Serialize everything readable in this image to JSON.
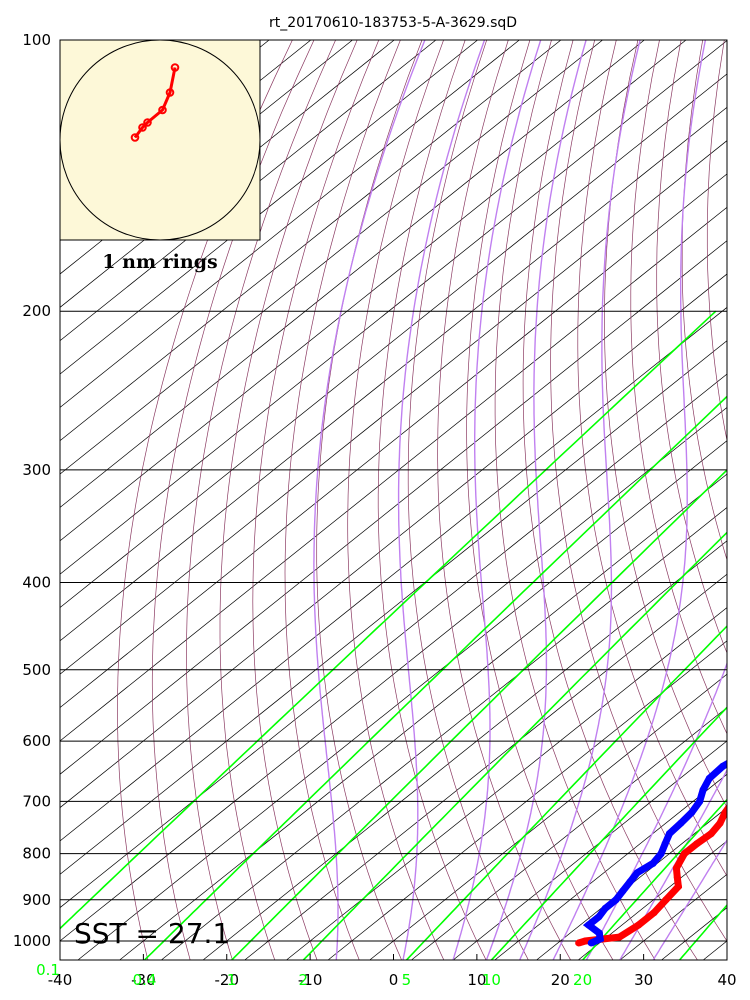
{
  "chart_data": {
    "type": "skew-t",
    "title": "rt_20170610-183753-5-A-3629.sqD",
    "y_axis": {
      "scale": "log",
      "ylim": [
        1050,
        100
      ],
      "ticks": [
        100,
        200,
        300,
        400,
        500,
        600,
        700,
        800,
        900,
        1000
      ]
    },
    "x_axis": {
      "xlim": [
        -40,
        40
      ],
      "ticks": [
        -40,
        -30,
        -20,
        -10,
        0,
        10,
        20,
        30,
        40
      ]
    },
    "mixing_ratio_labels": [
      "0.1",
      "0.4",
      "1",
      "2",
      "5",
      "10",
      "20"
    ],
    "mixing_ratio_values": [
      0.1,
      0.4,
      1,
      2,
      5,
      10,
      20
    ],
    "annotation": "SST = 27.1",
    "inset_label": "1 nm rings",
    "colors": {
      "temperature": "#ff0000",
      "dewpoint": "#0000ff",
      "mixing_ratio": "#00ff00",
      "dry_adiabat": "#8b3a62",
      "moist_adiabat": "#c080f0",
      "isotherm": "#000000",
      "inset_bg": "#fdf8d8"
    },
    "series": [
      {
        "key": "temperature",
        "points": [
          [
            1005,
            22.5
          ],
          [
            1000,
            23.0
          ],
          [
            990,
            26.5
          ],
          [
            960,
            27.0
          ],
          [
            930,
            27.0
          ],
          [
            900,
            26.5
          ],
          [
            870,
            26.0
          ],
          [
            850,
            24.5
          ],
          [
            830,
            23.0
          ],
          [
            800,
            21.8
          ],
          [
            780,
            21.8
          ],
          [
            760,
            22.0
          ],
          [
            740,
            21.5
          ],
          [
            720,
            20.5
          ],
          [
            700,
            19.8
          ],
          [
            680,
            19.5
          ],
          [
            660,
            18.5
          ],
          [
            640,
            17.5
          ],
          [
            620,
            17.5
          ],
          [
            600,
            18.0
          ],
          [
            585,
            18.5
          ],
          [
            570,
            18.5
          ]
        ]
      },
      {
        "key": "dewpoint",
        "points": [
          [
            1005,
            24.0
          ],
          [
            995,
            24.5
          ],
          [
            980,
            23.5
          ],
          [
            960,
            21.0
          ],
          [
            940,
            21.0
          ],
          [
            920,
            20.5
          ],
          [
            900,
            20.5
          ],
          [
            880,
            20.0
          ],
          [
            860,
            19.5
          ],
          [
            840,
            19.0
          ],
          [
            820,
            19.5
          ],
          [
            800,
            19.0
          ],
          [
            780,
            18.0
          ],
          [
            760,
            17.0
          ],
          [
            740,
            16.8
          ],
          [
            720,
            16.5
          ],
          [
            700,
            15.8
          ],
          [
            680,
            14.5
          ],
          [
            660,
            13.5
          ],
          [
            640,
            13.3
          ],
          [
            620,
            14.0
          ],
          [
            600,
            15.0
          ],
          [
            580,
            15.8
          ],
          [
            565,
            16.5
          ]
        ]
      }
    ],
    "hodograph": {
      "points": [
        [
          -1.0,
          0.1
        ],
        [
          -0.7,
          0.5
        ],
        [
          -0.5,
          0.7
        ],
        [
          0.1,
          1.2
        ],
        [
          0.4,
          1.9
        ],
        [
          0.6,
          2.9
        ]
      ]
    }
  }
}
